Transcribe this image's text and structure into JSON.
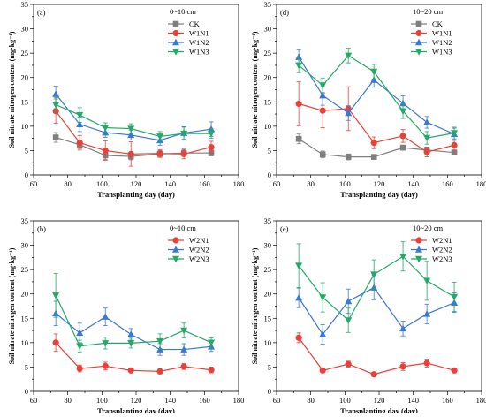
{
  "chart_data": [
    {
      "type": "line",
      "panel_label": "(a)",
      "title": "0~10 cm",
      "xlabel": "Transplanting day (day)",
      "ylabel": "Soil nitrate nitrogen content (mg·kg⁻¹)",
      "xlim": [
        60,
        180
      ],
      "ylim": [
        0,
        35
      ],
      "xticks": [
        60,
        80,
        100,
        120,
        140,
        160,
        180
      ],
      "yticks": [
        0,
        5,
        10,
        15,
        20,
        25,
        30,
        35
      ],
      "x": [
        73,
        87,
        102,
        117,
        134,
        148,
        164
      ],
      "legend_position": "top-right",
      "series": [
        {
          "name": "CK",
          "color": "#7f7f7f",
          "marker": "square",
          "values": [
            7.7,
            6.2,
            4.0,
            3.8,
            4.3,
            4.5,
            4.5
          ],
          "errors": [
            1.0,
            0.8,
            0.8,
            0.7,
            0.7,
            0.7,
            0.6
          ]
        },
        {
          "name": "W1N1",
          "color": "#e8413a",
          "marker": "circle",
          "values": [
            13.1,
            6.6,
            5.0,
            4.3,
            4.4,
            4.3,
            5.7
          ],
          "errors": [
            2.5,
            1.5,
            2.0,
            2.5,
            0.8,
            1.0,
            1.2
          ]
        },
        {
          "name": "W1N2",
          "color": "#3a78d8",
          "marker": "triangle-up",
          "values": [
            16.6,
            10.4,
            8.7,
            8.2,
            7.1,
            8.6,
            9.4
          ],
          "errors": [
            1.6,
            1.5,
            1.0,
            1.0,
            1.0,
            1.3,
            1.5
          ]
        },
        {
          "name": "W1N3",
          "color": "#22aa66",
          "marker": "triangle-down",
          "values": [
            14.4,
            12.3,
            9.7,
            9.5,
            7.9,
            8.5,
            8.5
          ],
          "errors": [
            1.5,
            1.5,
            1.0,
            1.0,
            1.0,
            1.3,
            1.0
          ]
        }
      ]
    },
    {
      "type": "line",
      "panel_label": "(d)",
      "title": "10~20 cm",
      "xlabel": "Transplanting day (day)",
      "ylabel": "Soil nitrate nitrogen content (mg·kg⁻¹)",
      "xlim": [
        60,
        180
      ],
      "ylim": [
        0,
        35
      ],
      "xticks": [
        60,
        80,
        100,
        120,
        140,
        160,
        180
      ],
      "yticks": [
        0,
        5,
        10,
        15,
        20,
        25,
        30,
        35
      ],
      "x": [
        73,
        87,
        102,
        117,
        134,
        148,
        164
      ],
      "legend_position": "top-right",
      "series": [
        {
          "name": "CK",
          "color": "#7f7f7f",
          "marker": "square",
          "values": [
            7.4,
            4.2,
            3.7,
            3.7,
            5.6,
            5.1,
            4.6
          ],
          "errors": [
            1.0,
            0.7,
            0.6,
            0.5,
            0.5,
            0.6,
            0.5
          ]
        },
        {
          "name": "W1N1",
          "color": "#e8413a",
          "marker": "circle",
          "values": [
            14.6,
            13.2,
            13.6,
            6.6,
            8.0,
            4.7,
            6.1
          ],
          "errors": [
            4.5,
            3.5,
            4.5,
            1.2,
            1.3,
            1.0,
            1.0
          ]
        },
        {
          "name": "W1N2",
          "color": "#3a78d8",
          "marker": "triangle-up",
          "values": [
            24.2,
            16.3,
            12.7,
            19.5,
            14.7,
            10.8,
            8.4
          ],
          "errors": [
            1.5,
            2.0,
            1.5,
            1.5,
            1.5,
            1.2,
            1.2
          ]
        },
        {
          "name": "W1N3",
          "color": "#22aa66",
          "marker": "triangle-down",
          "values": [
            22.5,
            18.4,
            24.5,
            21.2,
            13.1,
            7.6,
            8.6
          ],
          "errors": [
            1.5,
            1.5,
            1.5,
            1.5,
            1.5,
            1.3,
            1.2
          ]
        }
      ]
    },
    {
      "type": "line",
      "panel_label": "(b)",
      "title": "0~10 cm",
      "xlabel": "Transplanting day (day)",
      "ylabel": "Soil nitrate nitrogen content (mg·kg⁻¹)",
      "xlim": [
        60,
        180
      ],
      "ylim": [
        0,
        35
      ],
      "xticks": [
        60,
        80,
        100,
        120,
        140,
        160,
        180
      ],
      "yticks": [
        0,
        5,
        10,
        15,
        20,
        25,
        30,
        35
      ],
      "x": [
        73,
        87,
        102,
        117,
        134,
        148,
        164
      ],
      "legend_position": "top-right",
      "series": [
        {
          "name": "W2N1",
          "color": "#e8413a",
          "marker": "circle",
          "values": [
            10.0,
            4.7,
            5.2,
            4.3,
            4.1,
            5.1,
            4.4
          ],
          "errors": [
            1.8,
            0.7,
            0.8,
            0.5,
            0.5,
            0.6,
            0.6
          ]
        },
        {
          "name": "W2N2",
          "color": "#3a78d8",
          "marker": "triangle-up",
          "values": [
            16.0,
            12.0,
            15.3,
            11.7,
            8.6,
            8.6,
            9.2
          ],
          "errors": [
            2.5,
            2.0,
            1.8,
            1.2,
            1.2,
            1.2,
            1.0
          ]
        },
        {
          "name": "W2N3",
          "color": "#22aa66",
          "marker": "triangle-down",
          "values": [
            19.7,
            9.3,
            9.9,
            9.9,
            10.3,
            12.5,
            10.0
          ],
          "errors": [
            4.5,
            1.2,
            1.2,
            1.0,
            1.5,
            1.5,
            1.0
          ]
        }
      ]
    },
    {
      "type": "line",
      "panel_label": "(e)",
      "title": "10~20 cm",
      "xlabel": "Transplanting day (day)",
      "ylabel": "Soil nitrate nitrogen content (mg·kg⁻¹)",
      "xlim": [
        60,
        180
      ],
      "ylim": [
        0,
        35
      ],
      "xticks": [
        60,
        80,
        100,
        120,
        140,
        160,
        180
      ],
      "yticks": [
        0,
        5,
        10,
        15,
        20,
        25,
        30,
        35
      ],
      "x": [
        73,
        87,
        102,
        117,
        134,
        148,
        164
      ],
      "legend_position": "top-right",
      "series": [
        {
          "name": "W2N1",
          "color": "#e8413a",
          "marker": "circle",
          "values": [
            11.0,
            4.3,
            5.6,
            3.5,
            5.1,
            5.8,
            4.3
          ],
          "errors": [
            1.0,
            0.5,
            0.6,
            0.4,
            0.8,
            0.8,
            0.5
          ]
        },
        {
          "name": "W2N2",
          "color": "#3a78d8",
          "marker": "triangle-up",
          "values": [
            19.2,
            11.7,
            18.5,
            21.3,
            12.9,
            15.9,
            18.2
          ],
          "errors": [
            2.0,
            2.0,
            2.5,
            2.5,
            1.5,
            2.0,
            2.0
          ]
        },
        {
          "name": "W2N3",
          "color": "#22aa66",
          "marker": "triangle-down",
          "values": [
            25.8,
            19.3,
            14.6,
            24.0,
            27.7,
            22.7,
            19.4
          ],
          "errors": [
            4.5,
            3.0,
            2.5,
            3.0,
            3.0,
            4.0,
            3.0
          ]
        }
      ]
    }
  ]
}
